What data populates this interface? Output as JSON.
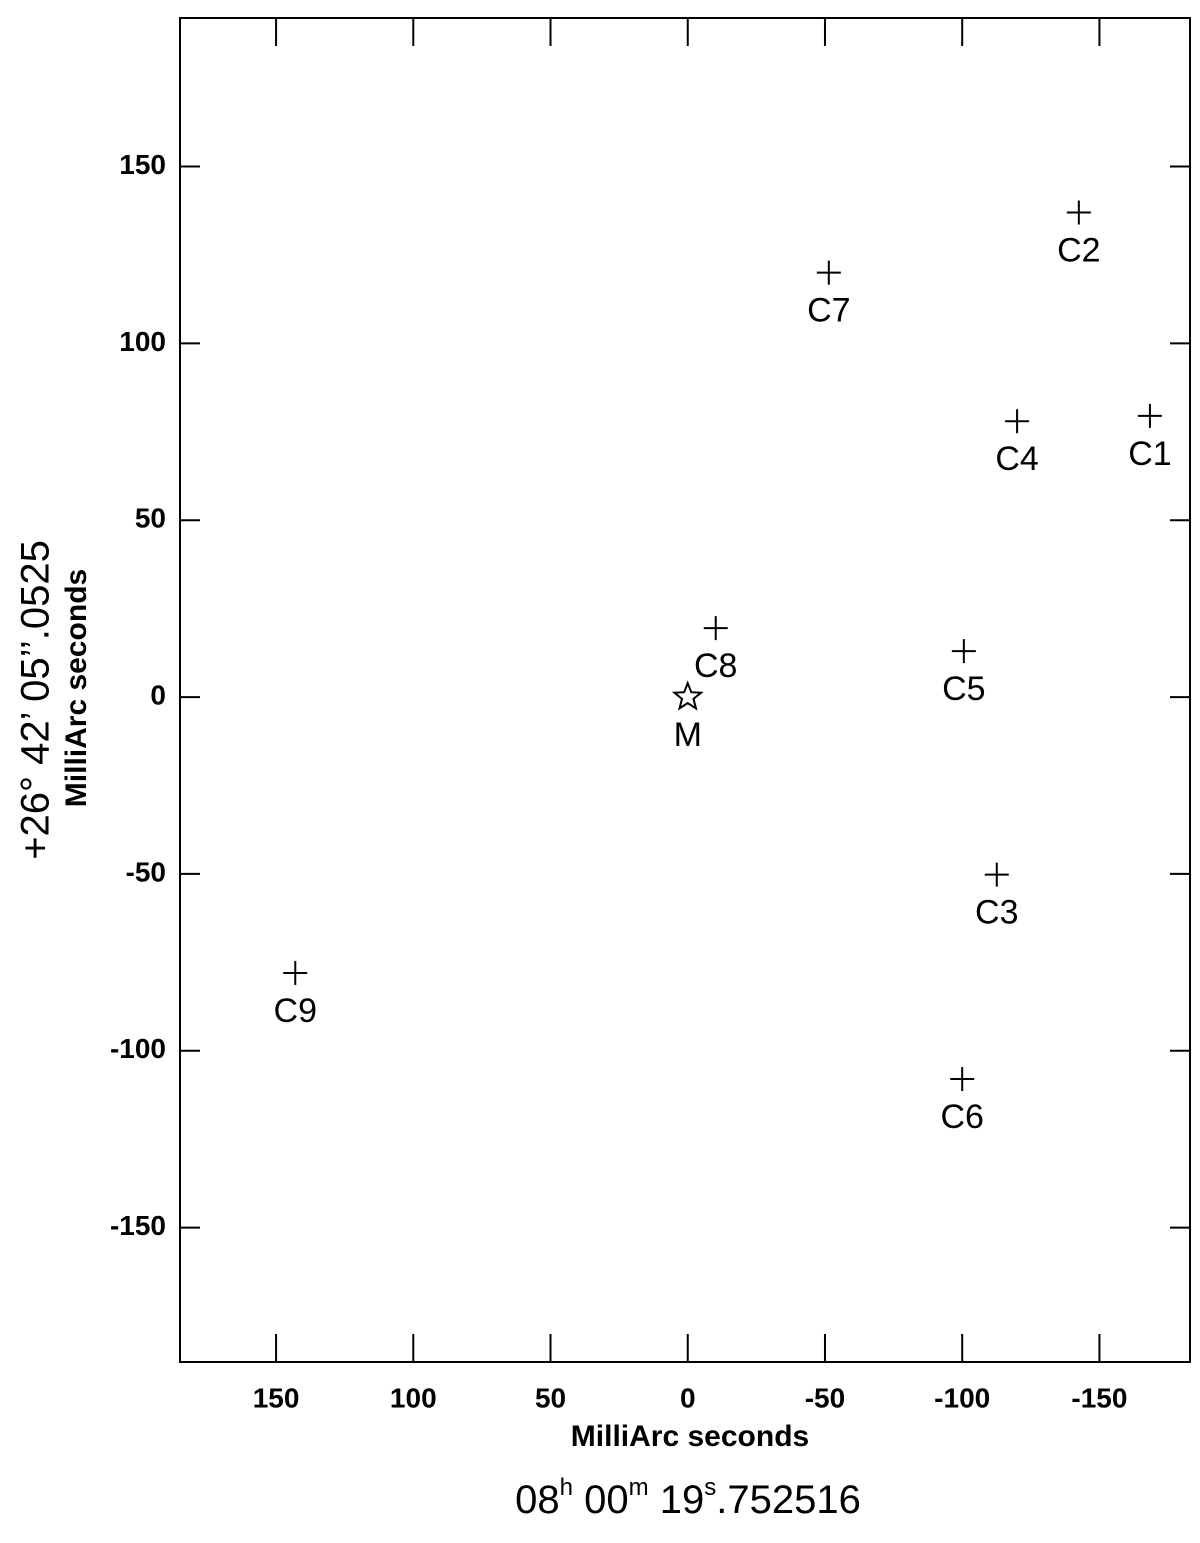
{
  "chart_data": {
    "type": "scatter",
    "x_label": "MilliArc seconds",
    "y_label": "MilliArc seconds",
    "y_reference": "+26° 42’ 05’’.0525",
    "x_reference": [
      "08",
      "h",
      " 00",
      "m",
      " 19",
      "s",
      ".752516"
    ],
    "labels": [
      "M",
      "C1",
      "C2",
      "C3",
      "C4",
      "C5",
      "C6",
      "C7",
      "C8",
      "C9"
    ],
    "markers": [
      "star",
      "plus",
      "plus",
      "plus",
      "plus",
      "plus",
      "plus",
      "plus",
      "plus",
      "plus"
    ],
    "x": [
      0,
      -168.4,
      -142.5,
      -112.6,
      -120,
      -100.6,
      -100,
      -51.4,
      -10.2,
      143
    ],
    "y": [
      0,
      79.5,
      137,
      -50.2,
      78,
      13,
      -108,
      120,
      19.5,
      -78
    ],
    "color": "#000000",
    "xlim": [
      185,
      -183
    ],
    "xticks": [
      150,
      100,
      50,
      0,
      -50,
      -100,
      -150
    ],
    "ylim": [
      -188,
      192
    ],
    "yticks": [
      150,
      100,
      50,
      0,
      -50,
      -100,
      -150
    ]
  }
}
